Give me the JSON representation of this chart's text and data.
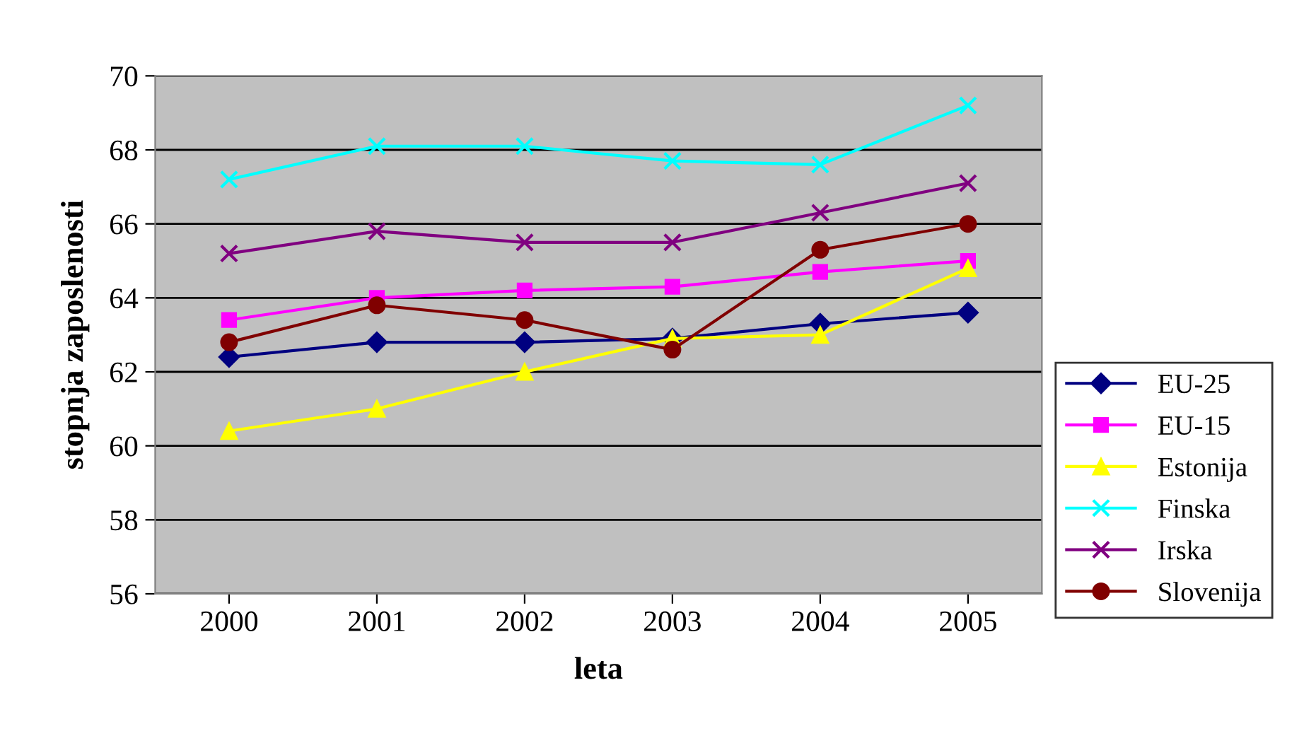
{
  "chart_data": {
    "type": "line",
    "xlabel": "leta",
    "ylabel": "stopnja zaposlenosti",
    "categories": [
      "2000",
      "2001",
      "2002",
      "2003",
      "2004",
      "2005"
    ],
    "series": [
      {
        "name": "EU-25",
        "color": "#000080",
        "marker": "diamond",
        "values": [
          62.4,
          62.8,
          62.8,
          62.9,
          63.3,
          63.6
        ]
      },
      {
        "name": "EU-15",
        "color": "#ff00ff",
        "marker": "square",
        "values": [
          63.4,
          64.0,
          64.2,
          64.3,
          64.7,
          65.0
        ]
      },
      {
        "name": "Estonija",
        "color": "#ffff00",
        "marker": "triangle",
        "values": [
          60.4,
          61.0,
          62.0,
          62.9,
          63.0,
          64.8
        ]
      },
      {
        "name": "Finska",
        "color": "#00ffff",
        "marker": "cross",
        "values": [
          67.2,
          68.1,
          68.1,
          67.7,
          67.6,
          69.2
        ]
      },
      {
        "name": "Irska",
        "color": "#800080",
        "marker": "cross",
        "values": [
          65.2,
          65.8,
          65.5,
          65.5,
          66.3,
          67.1
        ]
      },
      {
        "name": "Slovenija",
        "color": "#800000",
        "marker": "circle",
        "values": [
          62.8,
          63.8,
          63.4,
          62.6,
          65.3,
          66.0
        ]
      }
    ],
    "ylim": [
      56,
      70
    ],
    "yticks": [
      56,
      58,
      60,
      62,
      64,
      66,
      68,
      70
    ],
    "grid": "y",
    "legend": "right"
  }
}
